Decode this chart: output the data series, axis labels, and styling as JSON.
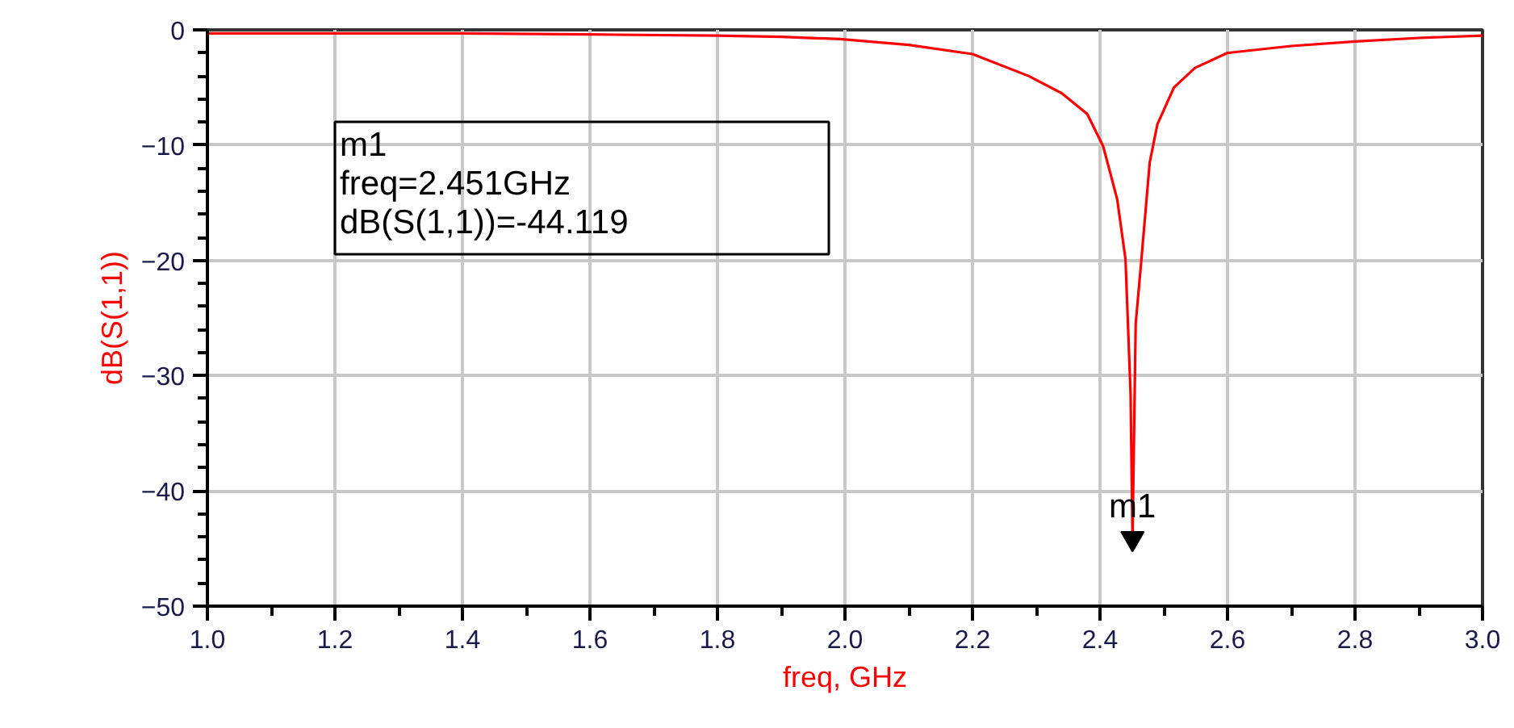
{
  "chart_data": {
    "type": "line",
    "xlabel": "freq, GHz",
    "ylabel": "dB(S(1,1))",
    "x": [
      1.0,
      1.2,
      1.4,
      1.6,
      1.8,
      1.9,
      1.992,
      2.1,
      2.2,
      2.288,
      2.34,
      2.38,
      2.405,
      2.427,
      2.44,
      2.448,
      2.451,
      2.456,
      2.465,
      2.478,
      2.49,
      2.516,
      2.549,
      2.6,
      2.7,
      2.8,
      2.9,
      3.0
    ],
    "series": [
      {
        "color": "#ff0000",
        "values": [
          -0.3,
          -0.3,
          -0.3,
          -0.4,
          -0.5,
          -0.6,
          -0.8,
          -1.3,
          -2.1,
          -4.0,
          -5.5,
          -7.3,
          -10.1,
          -14.7,
          -19.9,
          -31.6,
          -44.119,
          -25.5,
          -19.9,
          -11.5,
          -8.2,
          -5.0,
          -3.3,
          -2.0,
          -1.4,
          -1.0,
          -0.7,
          -0.5
        ]
      }
    ],
    "xlim": [
      1.0,
      3.0
    ],
    "ylim": [
      -50,
      0
    ],
    "xticks": [
      {
        "value": 1.0,
        "label": "1.0"
      },
      1.2,
      1.4,
      1.6,
      1.8,
      {
        "value": 2.0,
        "label": "2.0"
      },
      2.2,
      2.4,
      2.6,
      2.8,
      {
        "value": 3.0,
        "label": "3.0"
      }
    ],
    "yticks": [
      -50,
      -40,
      -30,
      -20,
      -10,
      0
    ],
    "grid": true,
    "marker": "none",
    "line_style": "solid",
    "annotations": [
      "m1",
      "freq=2.451GHz",
      "dB(S(1,1))=-44.119",
      {
        "text": "m1",
        "x": 2.451,
        "y": -44.119
      }
    ]
  }
}
